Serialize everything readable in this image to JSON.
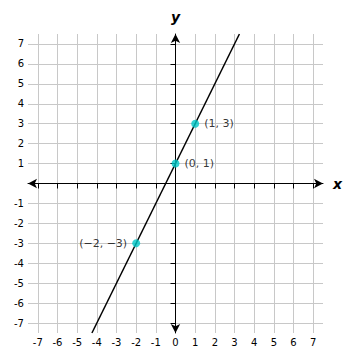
{
  "chart_data": {
    "type": "scatter",
    "xlabel": "x",
    "ylabel": "y",
    "xlim": [
      -7.5,
      7.5
    ],
    "ylim": [
      -7.5,
      7.5
    ],
    "xticks": [
      -7,
      -6,
      -5,
      -4,
      -3,
      -2,
      -1,
      0,
      1,
      2,
      3,
      4,
      5,
      6,
      7
    ],
    "yticks": [
      -7,
      -6,
      -5,
      -4,
      -3,
      -2,
      -1,
      1,
      2,
      3,
      4,
      5,
      6,
      7
    ],
    "grid": true,
    "grid_color": "#C8C8C8",
    "series": [
      {
        "type": "line",
        "color": "#000000",
        "x": [
          -4.25,
          3.25
        ],
        "values": [
          -7.5,
          7.5
        ]
      },
      {
        "type": "scatter",
        "color": "#00C8C8",
        "x": [
          -2,
          0,
          1
        ],
        "values": [
          -3,
          1,
          3
        ],
        "labels": [
          "(−2, −3)",
          "(0, 1)",
          "(1, 3)"
        ]
      }
    ]
  }
}
